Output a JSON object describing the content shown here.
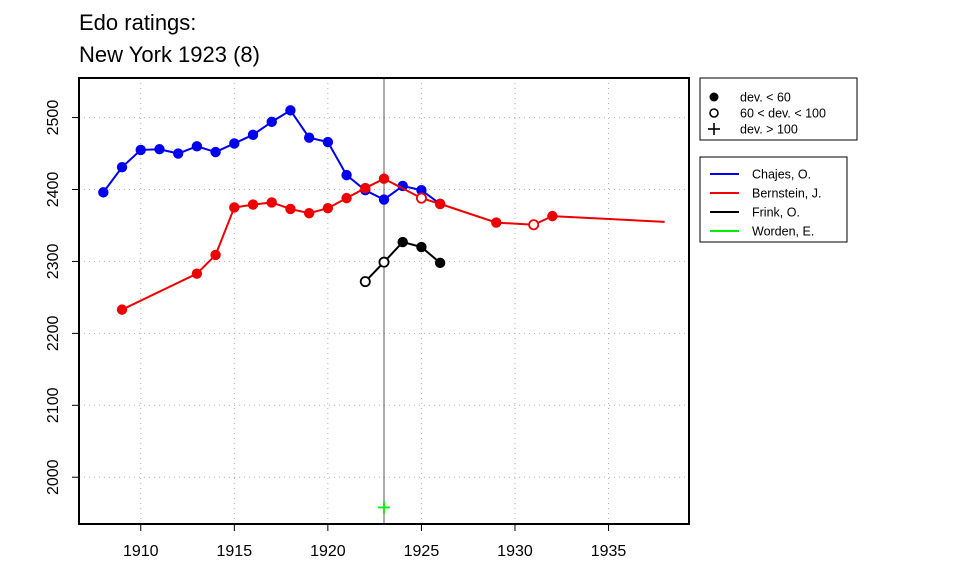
{
  "page": {
    "title_line1": "Edo ratings:",
    "title_line2": "New York 1923 (8)"
  },
  "colors": {
    "Chajes": "#0000ee",
    "Bernstein": "#ee0000",
    "Frink": "#000000",
    "Worden": "#00ee00",
    "grid": "#b0b0b0",
    "event_line": "#808080"
  },
  "chart_data": {
    "type": "line",
    "title": "Edo ratings:\nNew York 1923 (8)",
    "xlabel": "",
    "ylabel": "",
    "xlim": [
      1906.7,
      1939.3
    ],
    "ylim": [
      1935,
      2555
    ],
    "x_ticks": [
      1910,
      1915,
      1920,
      1925,
      1930,
      1935
    ],
    "y_ticks": [
      2000,
      2100,
      2200,
      2300,
      2400,
      2500
    ],
    "grid": true,
    "event_year": 1923,
    "legend_placement": "right, outside plot",
    "symbol_legend": [
      {
        "symbol": "filled",
        "label": "dev. < 60"
      },
      {
        "symbol": "open",
        "label": "60 < dev. < 100"
      },
      {
        "symbol": "plus",
        "label": "dev. > 100"
      }
    ],
    "series": [
      {
        "name": "Chajes, O.",
        "color_key": "Chajes",
        "line_end_year": null,
        "points": [
          [
            1908,
            2396,
            "filled"
          ],
          [
            1909,
            2431,
            "filled"
          ],
          [
            1910,
            2455,
            "filled"
          ],
          [
            1911,
            2456,
            "filled"
          ],
          [
            1912,
            2450,
            "filled"
          ],
          [
            1913,
            2460,
            "filled"
          ],
          [
            1914,
            2452,
            "filled"
          ],
          [
            1915,
            2464,
            "filled"
          ],
          [
            1916,
            2476,
            "filled"
          ],
          [
            1917,
            2494,
            "filled"
          ],
          [
            1918,
            2510,
            "filled"
          ],
          [
            1919,
            2472,
            "filled"
          ],
          [
            1920,
            2466,
            "filled"
          ],
          [
            1921,
            2420,
            "filled"
          ],
          [
            1922,
            2399,
            "filled"
          ],
          [
            1923,
            2386,
            "filled"
          ],
          [
            1924,
            2405,
            "filled"
          ],
          [
            1925,
            2399,
            "filled"
          ],
          [
            1926,
            2380,
            "filled"
          ]
        ]
      },
      {
        "name": "Bernstein, J.",
        "color_key": "Bernstein",
        "line_end_year": 1938,
        "line_end_value": 2355,
        "points": [
          [
            1909,
            2233,
            "filled"
          ],
          [
            1913,
            2283,
            "filled"
          ],
          [
            1914,
            2309,
            "filled"
          ],
          [
            1915,
            2375,
            "filled"
          ],
          [
            1916,
            2379,
            "filled"
          ],
          [
            1917,
            2382,
            "filled"
          ],
          [
            1918,
            2373,
            "filled"
          ],
          [
            1919,
            2367,
            "filled"
          ],
          [
            1920,
            2374,
            "filled"
          ],
          [
            1921,
            2388,
            "filled"
          ],
          [
            1922,
            2402,
            "filled"
          ],
          [
            1923,
            2415,
            "filled"
          ],
          [
            1925,
            2388,
            "open"
          ],
          [
            1926,
            2380,
            "filled"
          ],
          [
            1929,
            2354,
            "filled"
          ],
          [
            1931,
            2351,
            "open"
          ],
          [
            1932,
            2363,
            "filled"
          ]
        ]
      },
      {
        "name": "Frink, O.",
        "color_key": "Frink",
        "line_end_year": null,
        "points": [
          [
            1922,
            2272,
            "open"
          ],
          [
            1923,
            2299,
            "open"
          ],
          [
            1924,
            2327,
            "filled"
          ],
          [
            1925,
            2320,
            "filled"
          ],
          [
            1926,
            2298,
            "filled"
          ]
        ]
      },
      {
        "name": "Worden, E.",
        "color_key": "Worden",
        "line_end_year": null,
        "points": [
          [
            1923,
            1958,
            "plus"
          ]
        ]
      }
    ]
  }
}
